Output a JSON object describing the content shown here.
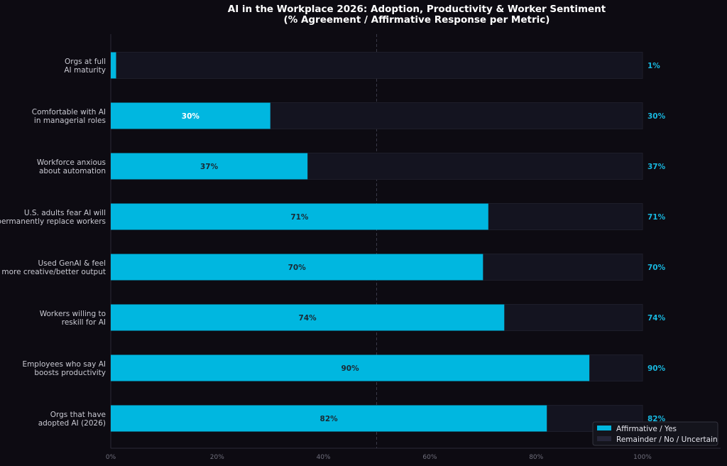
{
  "chart_data": {
    "type": "bar",
    "orientation": "horizontal",
    "stacked": true,
    "title": "AI in the Workplace 2026: Adoption, Productivity & Worker Sentiment",
    "subtitle": "(% Agreement / Affirmative Response per Metric)",
    "categories": [
      [
        "Orgs at full",
        "AI maturity"
      ],
      [
        "Comfortable with AI",
        "in managerial roles"
      ],
      [
        "Workforce anxious",
        "about automation"
      ],
      [
        "U.S. adults fear AI will",
        "permanently replace workers"
      ],
      [
        "Used GenAI & feel",
        "more creative/better output"
      ],
      [
        "Workers willing to",
        "reskill for AI"
      ],
      [
        "Employees who say AI",
        "boosts productivity"
      ],
      [
        "Orgs that have",
        "adopted AI (2026)"
      ]
    ],
    "series": [
      {
        "name": "Affirmative / Yes",
        "values": [
          1,
          30,
          37,
          71,
          70,
          74,
          90,
          82
        ]
      },
      {
        "name": "Remainder / No / Uncertain",
        "values": [
          99,
          70,
          63,
          29,
          30,
          26,
          10,
          18
        ]
      }
    ],
    "inner_labels": [
      "",
      "30%",
      "37%",
      "71%",
      "70%",
      "74%",
      "90%",
      "82%"
    ],
    "outer_labels": [
      "1%",
      "30%",
      "37%",
      "71%",
      "70%",
      "74%",
      "90%",
      "82%"
    ],
    "xticks": [
      "0%",
      "20%",
      "40%",
      "60%",
      "80%",
      "100%"
    ],
    "xlim": [
      0,
      100
    ],
    "reference_line": 50,
    "legend_position": "lower-right",
    "colors": {
      "background": "#0d0b12",
      "affirmative": "#00b7e0",
      "remainder": "#141420",
      "label_dark": "#1a2a35",
      "label_light": "#ffffff"
    }
  }
}
